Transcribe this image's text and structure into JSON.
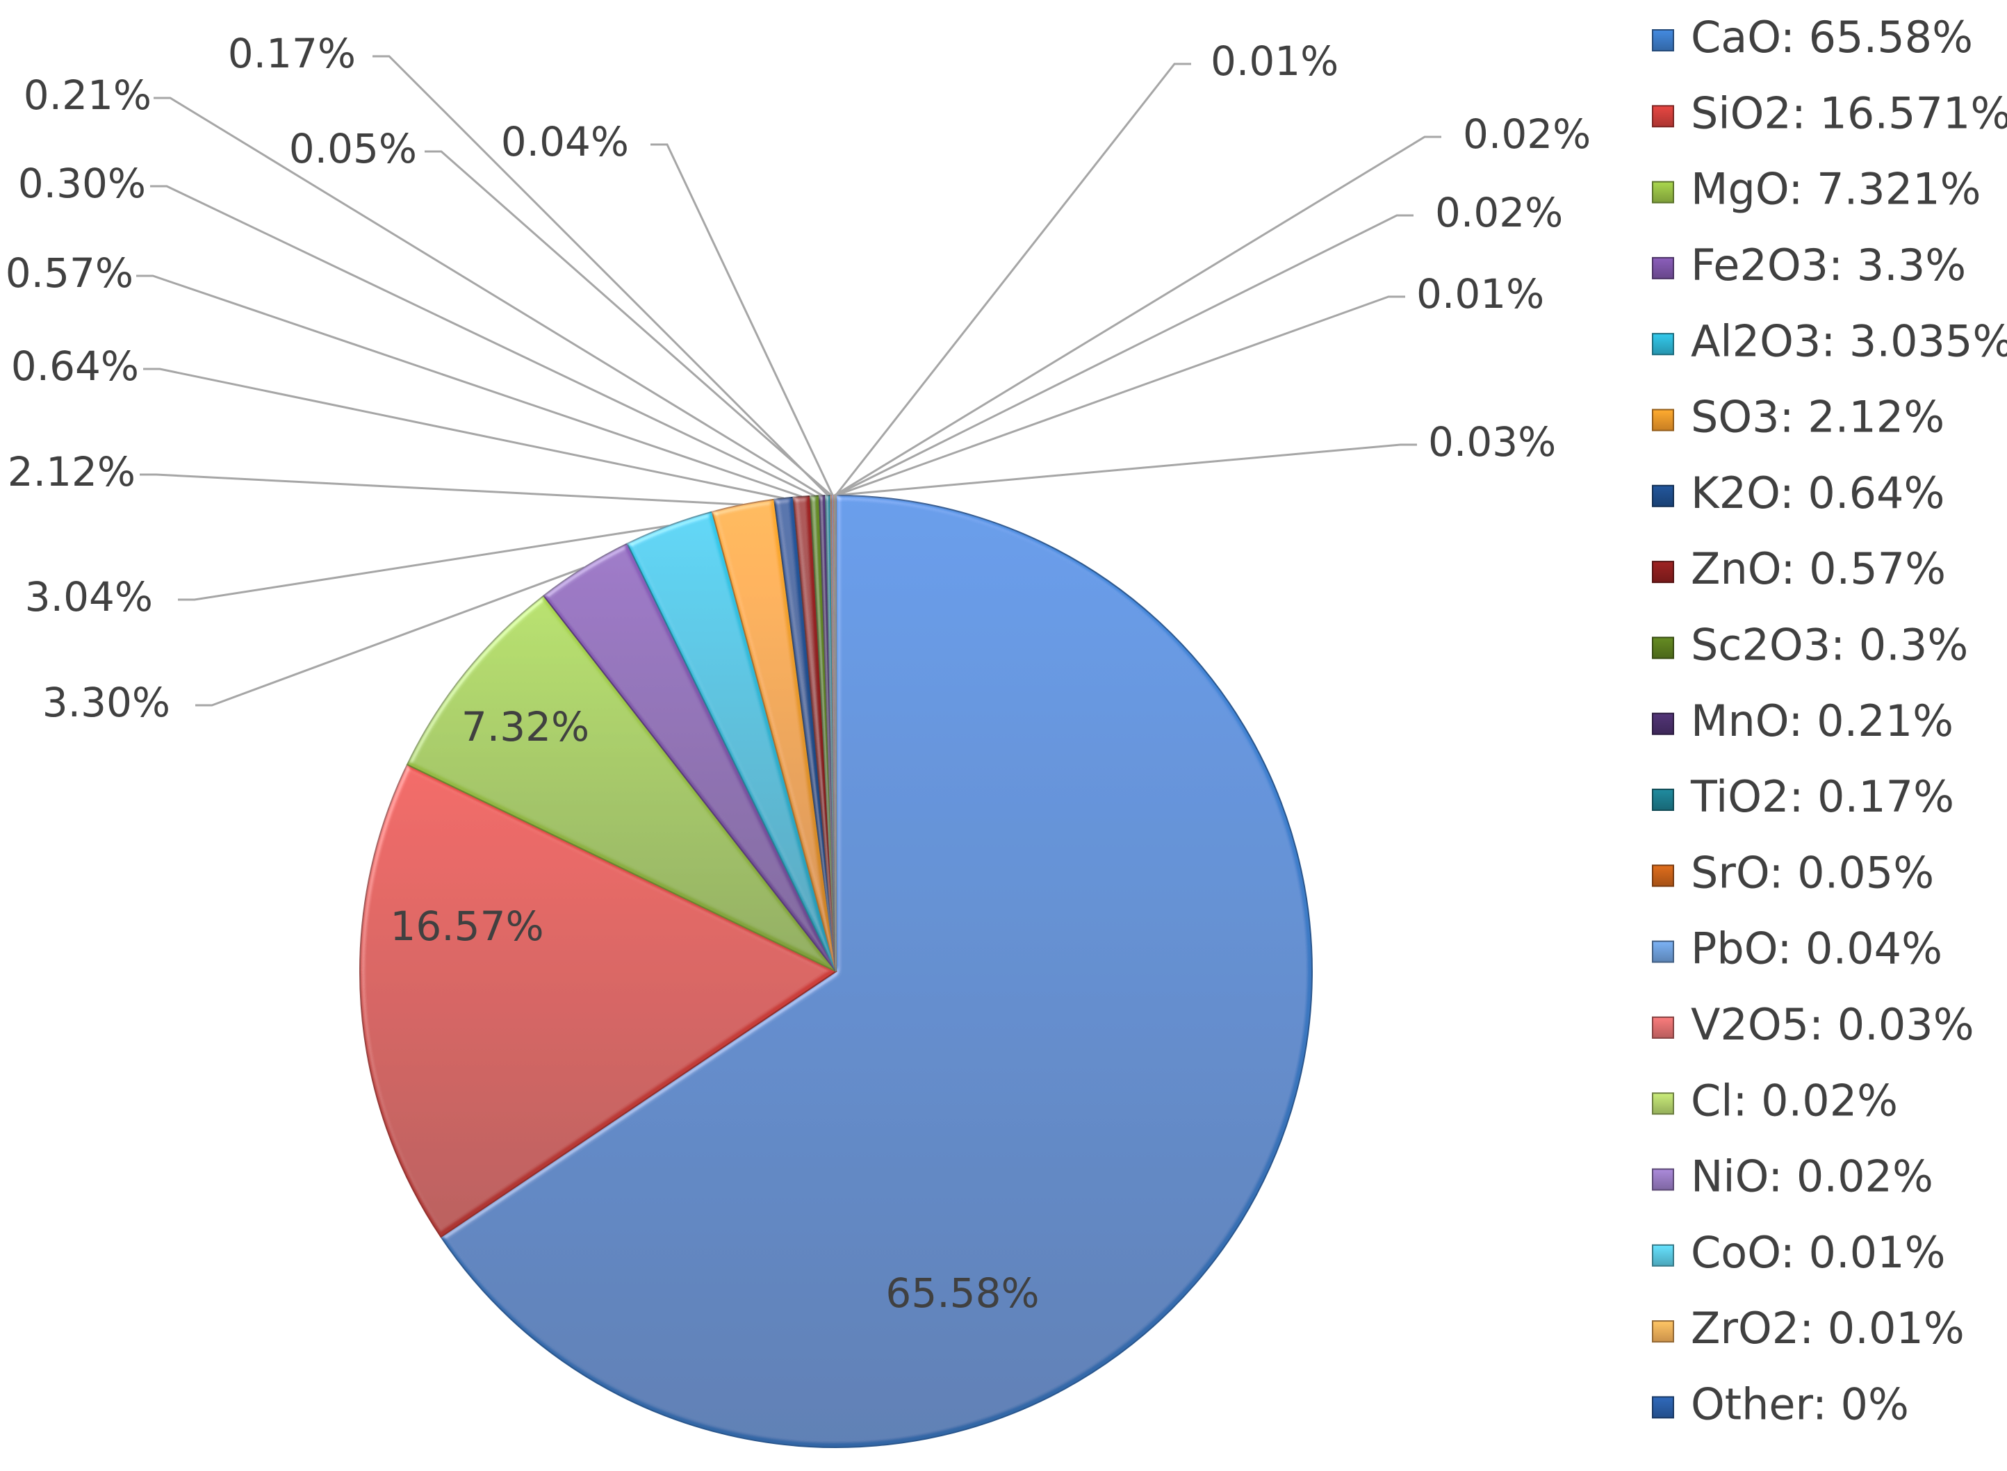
{
  "chart_data": {
    "type": "pie",
    "title": "",
    "legend_position": "right",
    "slices": [
      {
        "name": "CaO",
        "value": 65.58,
        "legend": "CaO: 65.58%",
        "label": "65.58%",
        "color": "#3d7cc9"
      },
      {
        "name": "SiO2",
        "value": 16.571,
        "legend": "SiO2: 16.571%",
        "label": "16.57%",
        "color": "#d0403c"
      },
      {
        "name": "MgO",
        "value": 7.321,
        "legend": "MgO: 7.321%",
        "label": "7.32%",
        "color": "#98c046"
      },
      {
        "name": "Fe2O3",
        "value": 3.3,
        "legend": "Fe2O3: 3.3%",
        "label": "3.30%",
        "color": "#7d55a8"
      },
      {
        "name": "Al2O3",
        "value": 3.035,
        "legend": "Al2O3: 3.035%",
        "label": "3.04%",
        "color": "#2eb5d4"
      },
      {
        "name": "SO3",
        "value": 2.12,
        "legend": "SO3: 2.12%",
        "label": "2.12%",
        "color": "#f39a2b"
      },
      {
        "name": "K2O",
        "value": 0.64,
        "legend": "K2O: 0.64%",
        "label": "0.64%",
        "color": "#1f4e8c"
      },
      {
        "name": "ZnO",
        "value": 0.57,
        "legend": "ZnO: 0.57%",
        "label": "0.57%",
        "color": "#8e1f1f"
      },
      {
        "name": "Sc2O3",
        "value": 0.3,
        "legend": "Sc2O3: 0.3%",
        "label": "0.30%",
        "color": "#5b7d1f"
      },
      {
        "name": "MnO",
        "value": 0.21,
        "legend": "MnO: 0.21%",
        "label": "0.21%",
        "color": "#4a2f6b"
      },
      {
        "name": "TiO2",
        "value": 0.17,
        "legend": "TiO2: 0.17%",
        "label": "0.17%",
        "color": "#1d7d8f"
      },
      {
        "name": "SrO",
        "value": 0.05,
        "legend": "SrO: 0.05%",
        "label": "0.05%",
        "color": "#c9621a"
      },
      {
        "name": "PbO",
        "value": 0.04,
        "legend": "PbO: 0.04%",
        "label": "0.04%",
        "color": "#6fa0dc"
      },
      {
        "name": "V2O5",
        "value": 0.03,
        "legend": "V2O5: 0.03%",
        "label": "0.03%",
        "color": "#e07070"
      },
      {
        "name": "Cl",
        "value": 0.02,
        "legend": "Cl: 0.02%",
        "label": "0.02%",
        "color": "#b5d46e"
      },
      {
        "name": "NiO",
        "value": 0.02,
        "legend": "NiO: 0.02%",
        "label": "0.02%",
        "color": "#9a7cc4"
      },
      {
        "name": "CoO",
        "value": 0.01,
        "legend": "CoO: 0.01%",
        "label": "0.01%",
        "color": "#5ccbe4"
      },
      {
        "name": "ZrO2",
        "value": 0.01,
        "legend": "ZrO2: 0.01%",
        "label": "0.01%",
        "color": "#f6b15a"
      },
      {
        "name": "Other",
        "value": 0,
        "legend": "Other: 0%",
        "label": "",
        "color": "#2b5fa8"
      }
    ]
  }
}
